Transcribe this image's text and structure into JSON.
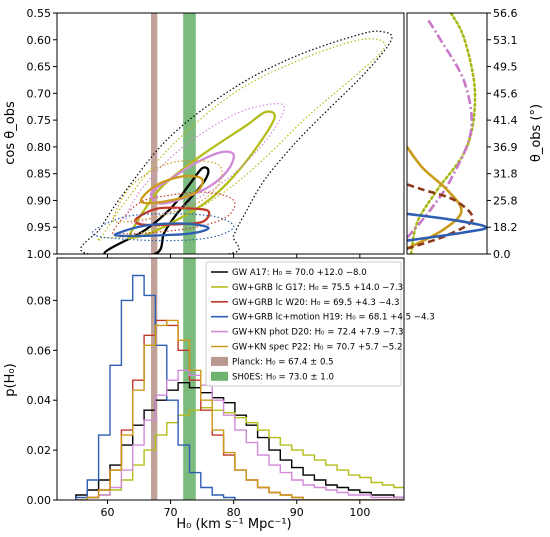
{
  "colors": {
    "gw_a17": "#000000",
    "grb_g17": "#b5bd1b",
    "grb_w20": "#c0392b",
    "grb_h19": "#2f5fb3",
    "kn_phot_d20": "#d18ad8",
    "kn_spec_p22": "#cc9a1a",
    "planck": "#b99890",
    "shoes": "#6fb36f",
    "side_green": "#a8b818",
    "side_pink": "#c878c8",
    "side_brown": "#8b3a1a"
  },
  "chart_data": [
    {
      "panel": "top-left",
      "type": "contour",
      "ylabel": "cos θ_obs",
      "xlim": [
        52,
        107
      ],
      "ylim": [
        1.0,
        0.55
      ],
      "yticks": [
        "0.55",
        "0.60",
        "0.65",
        "0.70",
        "0.75",
        "0.80",
        "0.85",
        "0.90",
        "0.95",
        "1.00"
      ],
      "grid": false,
      "bands": [
        {
          "name": "Planck",
          "x": 67.4,
          "width": 1.0
        },
        {
          "name": "SH0ES",
          "x": 73.0,
          "width": 2.0
        }
      ],
      "contours": [
        {
          "series": "GW A17",
          "level": "solid",
          "points": [
            [
              59.5,
              1.0
            ],
            [
              66,
              0.955
            ],
            [
              70,
              0.915
            ],
            [
              73,
              0.87
            ],
            [
              75,
              0.84
            ],
            [
              76,
              0.845
            ],
            [
              75,
              0.87
            ],
            [
              71,
              0.925
            ],
            [
              69,
              0.96
            ],
            [
              67.5,
              1.0
            ]
          ]
        },
        {
          "series": "GW A17",
          "level": "dotted",
          "points": [
            [
              57,
              1.0
            ],
            [
              59,
              0.95
            ],
            [
              63,
              0.88
            ],
            [
              70,
              0.78
            ],
            [
              80,
              0.69
            ],
            [
              90,
              0.63
            ],
            [
              100,
              0.59
            ],
            [
              103.5,
              0.585
            ],
            [
              105,
              0.6
            ],
            [
              101,
              0.66
            ],
            [
              95,
              0.73
            ],
            [
              90,
              0.79
            ],
            [
              85,
              0.86
            ],
            [
              82,
              0.92
            ],
            [
              80,
              0.965
            ],
            [
              79,
              1.0
            ]
          ]
        },
        {
          "series": "GW+GRB lc G17",
          "level": "solid",
          "points": [
            [
              63.5,
              0.965
            ],
            [
              66,
              0.915
            ],
            [
              69,
              0.87
            ],
            [
              75,
              0.815
            ],
            [
              82,
              0.76
            ],
            [
              85,
              0.735
            ],
            [
              86.5,
              0.745
            ],
            [
              84,
              0.795
            ],
            [
              80,
              0.855
            ],
            [
              76,
              0.9
            ],
            [
              72,
              0.93
            ],
            [
              67,
              0.96
            ],
            [
              64,
              0.97
            ]
          ]
        },
        {
          "series": "GW+GRB lc G17",
          "level": "dotted",
          "points": [
            [
              59,
              0.97
            ],
            [
              63,
              0.9
            ],
            [
              70,
              0.8
            ],
            [
              80,
              0.7
            ],
            [
              90,
              0.64
            ],
            [
              100,
              0.6
            ],
            [
              104,
              0.61
            ],
            [
              100,
              0.66
            ],
            [
              92,
              0.74
            ],
            [
              85,
              0.82
            ],
            [
              79,
              0.88
            ],
            [
              72,
              0.93
            ],
            [
              64,
              0.965
            ],
            [
              59,
              0.97
            ]
          ]
        },
        {
          "series": "GW+GRB lc W20",
          "level": "solid",
          "points": [
            [
              64.5,
              0.935
            ],
            [
              68,
              0.915
            ],
            [
              73,
              0.915
            ],
            [
              76,
              0.92
            ],
            [
              75,
              0.94
            ],
            [
              70,
              0.945
            ],
            [
              65.5,
              0.945
            ]
          ]
        },
        {
          "series": "GW+GRB lc W20",
          "level": "dotted",
          "points": [
            [
              61,
              0.955
            ],
            [
              65,
              0.905
            ],
            [
              70,
              0.89
            ],
            [
              76,
              0.885
            ],
            [
              80,
              0.9
            ],
            [
              79,
              0.93
            ],
            [
              74,
              0.95
            ],
            [
              67,
              0.96
            ],
            [
              62,
              0.962
            ]
          ]
        },
        {
          "series": "GW+GRB lc+motion H19",
          "level": "solid",
          "points": [
            [
              61.5,
              0.962
            ],
            [
              66,
              0.947
            ],
            [
              72,
              0.943
            ],
            [
              76,
              0.951
            ],
            [
              73,
              0.962
            ],
            [
              66,
              0.966
            ],
            [
              62,
              0.966
            ]
          ]
        },
        {
          "series": "GW+GRB lc+motion H19",
          "level": "dotted",
          "points": [
            [
              58,
              0.955
            ],
            [
              63,
              0.93
            ],
            [
              70,
              0.925
            ],
            [
              77,
              0.93
            ],
            [
              80,
              0.95
            ],
            [
              76,
              0.97
            ],
            [
              68,
              0.975
            ],
            [
              59,
              0.968
            ]
          ]
        },
        {
          "series": "GW+KN phot D20",
          "level": "solid",
          "points": [
            [
              67,
              0.885
            ],
            [
              70,
              0.86
            ],
            [
              74,
              0.83
            ],
            [
              78,
              0.81
            ],
            [
              80,
              0.815
            ],
            [
              79,
              0.845
            ],
            [
              76,
              0.875
            ],
            [
              71,
              0.9
            ],
            [
              68,
              0.905
            ]
          ]
        },
        {
          "series": "GW+KN phot D20",
          "level": "dotted",
          "points": [
            [
              63,
              0.93
            ],
            [
              66,
              0.87
            ],
            [
              72,
              0.8
            ],
            [
              80,
              0.74
            ],
            [
              86,
              0.72
            ],
            [
              88,
              0.73
            ],
            [
              85,
              0.79
            ],
            [
              79,
              0.86
            ],
            [
              72,
              0.91
            ],
            [
              65,
              0.94
            ]
          ]
        },
        {
          "series": "GW+KN spec P22",
          "level": "solid",
          "points": [
            [
              65.5,
              0.895
            ],
            [
              68,
              0.87
            ],
            [
              72,
              0.855
            ],
            [
              75,
              0.86
            ],
            [
              74,
              0.885
            ],
            [
              70,
              0.9
            ],
            [
              66,
              0.905
            ]
          ]
        },
        {
          "series": "GW+KN spec P22",
          "level": "dotted",
          "points": [
            [
              61,
              0.93
            ],
            [
              64,
              0.87
            ],
            [
              70,
              0.83
            ],
            [
              77,
              0.83
            ],
            [
              78,
              0.86
            ],
            [
              75,
              0.9
            ],
            [
              68,
              0.93
            ],
            [
              62,
              0.94
            ]
          ]
        }
      ]
    },
    {
      "panel": "top-right",
      "type": "line",
      "ylabel": "θ_obs (°)",
      "yticks": [
        "56.6",
        "53.1",
        "49.5",
        "45.6",
        "41.4",
        "36.9",
        "31.8",
        "25.8",
        "18.2",
        "0.0"
      ],
      "series": [
        {
          "series": "GW+GRB lc G17",
          "style": "dotted",
          "points": [
            [
              0.05,
              1.0
            ],
            [
              0.13,
              0.94
            ],
            [
              0.38,
              0.88
            ],
            [
              0.75,
              0.8
            ],
            [
              0.85,
              0.7
            ],
            [
              0.72,
              0.6
            ],
            [
              0.55,
              0.55
            ]
          ]
        },
        {
          "series": "GW+KN phot D20",
          "style": "dash-dot",
          "points": [
            [
              0.0,
              0.97
            ],
            [
              0.28,
              0.92
            ],
            [
              0.55,
              0.86
            ],
            [
              0.8,
              0.77
            ],
            [
              0.72,
              0.68
            ],
            [
              0.42,
              0.6
            ],
            [
              0.25,
              0.56
            ]
          ]
        },
        {
          "series": "GW+KN spec P22",
          "style": "solid",
          "points": [
            [
              0.0,
              0.99
            ],
            [
              0.45,
              0.955
            ],
            [
              0.68,
              0.92
            ],
            [
              0.5,
              0.88
            ],
            [
              0.2,
              0.84
            ],
            [
              0.0,
              0.8
            ]
          ]
        },
        {
          "series": "GW+GRB lc W20",
          "style": "dashed",
          "points": [
            [
              0.0,
              0.99
            ],
            [
              0.5,
              0.965
            ],
            [
              0.82,
              0.935
            ],
            [
              0.6,
              0.9
            ],
            [
              0.2,
              0.88
            ],
            [
              0.0,
              0.87
            ]
          ]
        },
        {
          "series": "GW+GRB lc+motion H19",
          "style": "solid",
          "points": [
            [
              0.0,
              0.975
            ],
            [
              0.7,
              0.96
            ],
            [
              0.99,
              0.95
            ],
            [
              0.6,
              0.937
            ],
            [
              0.0,
              0.925
            ]
          ]
        }
      ]
    },
    {
      "panel": "bottom",
      "type": "histogram",
      "xlabel": "H₀ (km s⁻¹ Mpc⁻¹)",
      "ylabel": "p(H₀)",
      "xlim": [
        52,
        107
      ],
      "ylim": [
        0,
        0.097
      ],
      "xticks": [
        "60",
        "70",
        "80",
        "90",
        "100"
      ],
      "yticks": [
        "0.00",
        "0.02",
        "0.04",
        "0.06",
        "0.08"
      ],
      "bands": [
        {
          "name": "Planck",
          "x": 67.4,
          "width": 1.0
        },
        {
          "name": "SH0ES",
          "x": 73.0,
          "width": 2.0
        }
      ],
      "series": [
        {
          "name": "GW A17",
          "values": [
            0.002,
            0.004,
            0.008,
            0.014,
            0.022,
            0.03,
            0.036,
            0.04,
            0.044,
            0.047,
            0.045,
            0.043,
            0.041,
            0.039,
            0.034,
            0.03,
            0.025,
            0.02,
            0.016,
            0.013,
            0.01,
            0.008,
            0.006,
            0.005,
            0.004,
            0.003,
            0.002,
            0.002,
            0.001,
            0.001
          ]
        },
        {
          "name": "GW+GRB lc G17",
          "values": [
            0.0,
            0.001,
            0.002,
            0.004,
            0.008,
            0.014,
            0.02,
            0.026,
            0.031,
            0.034,
            0.036,
            0.037,
            0.036,
            0.035,
            0.033,
            0.031,
            0.028,
            0.025,
            0.022,
            0.02,
            0.018,
            0.016,
            0.014,
            0.012,
            0.01,
            0.009,
            0.007,
            0.006,
            0.005,
            0.004
          ]
        },
        {
          "name": "GW+GRB lc W20",
          "values": [
            0.0,
            0.001,
            0.004,
            0.012,
            0.028,
            0.048,
            0.066,
            0.072,
            0.07,
            0.06,
            0.048,
            0.036,
            0.026,
            0.018,
            0.012,
            0.008,
            0.005,
            0.003,
            0.002,
            0.001,
            0.0,
            0.0,
            0.0,
            0.0,
            0.0,
            0.0,
            0.0,
            0.0,
            0.0,
            0.0
          ]
        },
        {
          "name": "GW+GRB lc+motion H19",
          "values": [
            0.001,
            0.008,
            0.026,
            0.054,
            0.08,
            0.09,
            0.082,
            0.062,
            0.04,
            0.022,
            0.011,
            0.005,
            0.002,
            0.001,
            0.0,
            0.0,
            0.0,
            0.0,
            0.0,
            0.0,
            0.0,
            0.0,
            0.0,
            0.0,
            0.0,
            0.0,
            0.0,
            0.0,
            0.0,
            0.0
          ]
        },
        {
          "name": "GW+KN phot D20",
          "values": [
            0.0,
            0.001,
            0.002,
            0.005,
            0.012,
            0.022,
            0.032,
            0.042,
            0.048,
            0.052,
            0.05,
            0.046,
            0.04,
            0.034,
            0.028,
            0.023,
            0.018,
            0.014,
            0.011,
            0.008,
            0.006,
            0.005,
            0.004,
            0.003,
            0.002,
            0.002,
            0.001,
            0.001,
            0.001,
            0.0
          ]
        },
        {
          "name": "GW+KN spec P22",
          "values": [
            0.0,
            0.001,
            0.004,
            0.012,
            0.026,
            0.044,
            0.062,
            0.07,
            0.072,
            0.064,
            0.052,
            0.04,
            0.028,
            0.019,
            0.012,
            0.008,
            0.005,
            0.003,
            0.002,
            0.001,
            0.0,
            0.0,
            0.0,
            0.0,
            0.0,
            0.0,
            0.0,
            0.0,
            0.0,
            0.0
          ]
        }
      ],
      "bin_start": 55,
      "bin_width": 1.8,
      "legend": {
        "placement": "upper-right",
        "entries": [
          {
            "key": "gw_a17",
            "kind": "line",
            "label": "GW A17: H₀ = 70.0 +12.0 −8.0"
          },
          {
            "key": "grb_g17",
            "kind": "line",
            "label": "GW+GRB lc G17: H₀ = 75.5 +14.0 −7.3"
          },
          {
            "key": "grb_w20",
            "kind": "line",
            "label": "GW+GRB lc W20: H₀ = 69.5 +4.3 −4.3"
          },
          {
            "key": "grb_h19",
            "kind": "line",
            "label": "GW+GRB lc+motion H19: H₀ = 68.1 +4.5 −4.3"
          },
          {
            "key": "kn_phot_d20",
            "kind": "line",
            "label": "GW+KN phot D20: H₀ = 72.4 +7.9 −7.3"
          },
          {
            "key": "kn_spec_p22",
            "kind": "line",
            "label": "GW+KN spec P22: H₀ = 70.7 +5.7 −5.2"
          },
          {
            "key": "planck",
            "kind": "patch",
            "label": "Planck: H₀ = 67.4 ± 0.5"
          },
          {
            "key": "shoes",
            "kind": "patch",
            "label": "SH0ES: H₀ = 73.0 ± 1.0"
          }
        ]
      }
    }
  ]
}
